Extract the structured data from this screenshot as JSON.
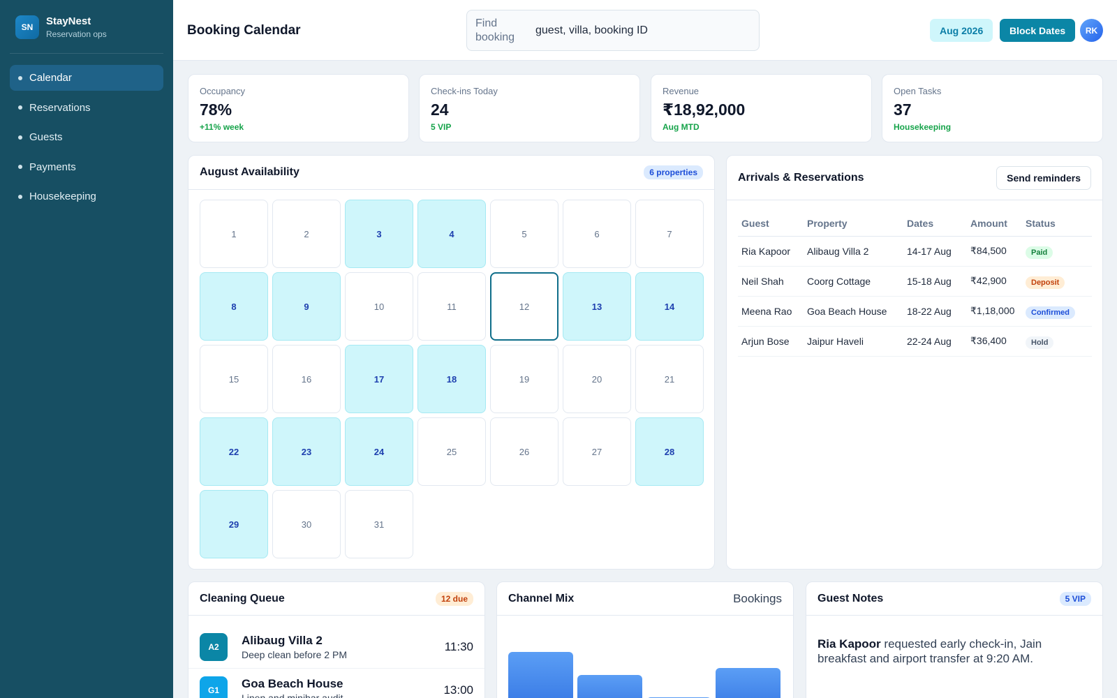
{
  "brand": {
    "logo": "SN",
    "name": "StayNest",
    "subtitle": "Reservation ops"
  },
  "nav": [
    {
      "label": "Calendar",
      "active": true
    },
    {
      "label": "Reservations",
      "active": false
    },
    {
      "label": "Guests",
      "active": false
    },
    {
      "label": "Payments",
      "active": false
    },
    {
      "label": "Housekeeping",
      "active": false
    }
  ],
  "header": {
    "title": "Booking Calendar",
    "search_label": "Find booking",
    "search_placeholder": "guest, villa, booking ID",
    "month": "Aug 2026",
    "block_label": "Block Dates",
    "avatar": "RK"
  },
  "stats": [
    {
      "label": "Occupancy",
      "value": "78%",
      "sub": "+11% week"
    },
    {
      "label": "Check-ins Today",
      "value": "24",
      "sub": "5 VIP"
    },
    {
      "label": "Revenue",
      "value": "₹18,92,000",
      "sub": "Aug MTD"
    },
    {
      "label": "Open Tasks",
      "value": "37",
      "sub": "Housekeeping"
    }
  ],
  "calendar": {
    "title": "August Availability",
    "badge": "6 properties",
    "days": [
      "1",
      "2",
      "3",
      "4",
      "5",
      "6",
      "7",
      "8",
      "9",
      "10",
      "11",
      "12",
      "13",
      "14",
      "15",
      "16",
      "17",
      "18",
      "19",
      "20",
      "21",
      "22",
      "23",
      "24",
      "25",
      "26",
      "27",
      "28",
      "29",
      "30",
      "31"
    ],
    "booked": [
      "3",
      "4",
      "8",
      "9",
      "13",
      "14",
      "17",
      "18",
      "22",
      "23",
      "24",
      "28",
      "29"
    ],
    "selected": "12"
  },
  "reservations": {
    "title": "Arrivals & Reservations",
    "action": "Send reminders",
    "columns": [
      "Guest",
      "Property",
      "Dates",
      "Amount",
      "Status"
    ],
    "rows": [
      {
        "guest": "Ria Kapoor",
        "property": "Alibaug Villa 2",
        "dates": "14-17 Aug",
        "amount": "₹84,500",
        "status": "Paid"
      },
      {
        "guest": "Neil Shah",
        "property": "Coorg Cottage",
        "dates": "15-18 Aug",
        "amount": "₹42,900",
        "status": "Deposit"
      },
      {
        "guest": "Meena Rao",
        "property": "Goa Beach House",
        "dates": "18-22 Aug",
        "amount": "₹1,18,000",
        "status": "Confirmed"
      },
      {
        "guest": "Arjun Bose",
        "property": "Jaipur Haveli",
        "dates": "22-24 Aug",
        "amount": "₹36,400",
        "status": "Hold"
      }
    ]
  },
  "cleaning": {
    "title": "Cleaning Queue",
    "badge": "12 due",
    "items": [
      {
        "code": "A2",
        "title": "Alibaug Villa 2",
        "sub": "Deep clean before 2 PM",
        "time": "11:30",
        "color": "#0b86a6"
      },
      {
        "code": "G1",
        "title": "Goa Beach House",
        "sub": "Linen and minibar audit",
        "time": "13:00",
        "color": "#0ea5e9"
      }
    ]
  },
  "channel": {
    "title": "Channel Mix",
    "legend": "Bookings"
  },
  "chart_data": {
    "type": "bar",
    "categories": [
      "",
      "",
      "",
      ""
    ],
    "values": [
      62,
      36,
      10,
      44
    ],
    "title": "Channel Mix",
    "ylabel": "Bookings"
  },
  "notes": {
    "title": "Guest Notes",
    "badge": "5 VIP",
    "guest": "Ria Kapoor",
    "text": " requested early check-in, Jain breakfast and airport transfer at 9:20 AM."
  }
}
